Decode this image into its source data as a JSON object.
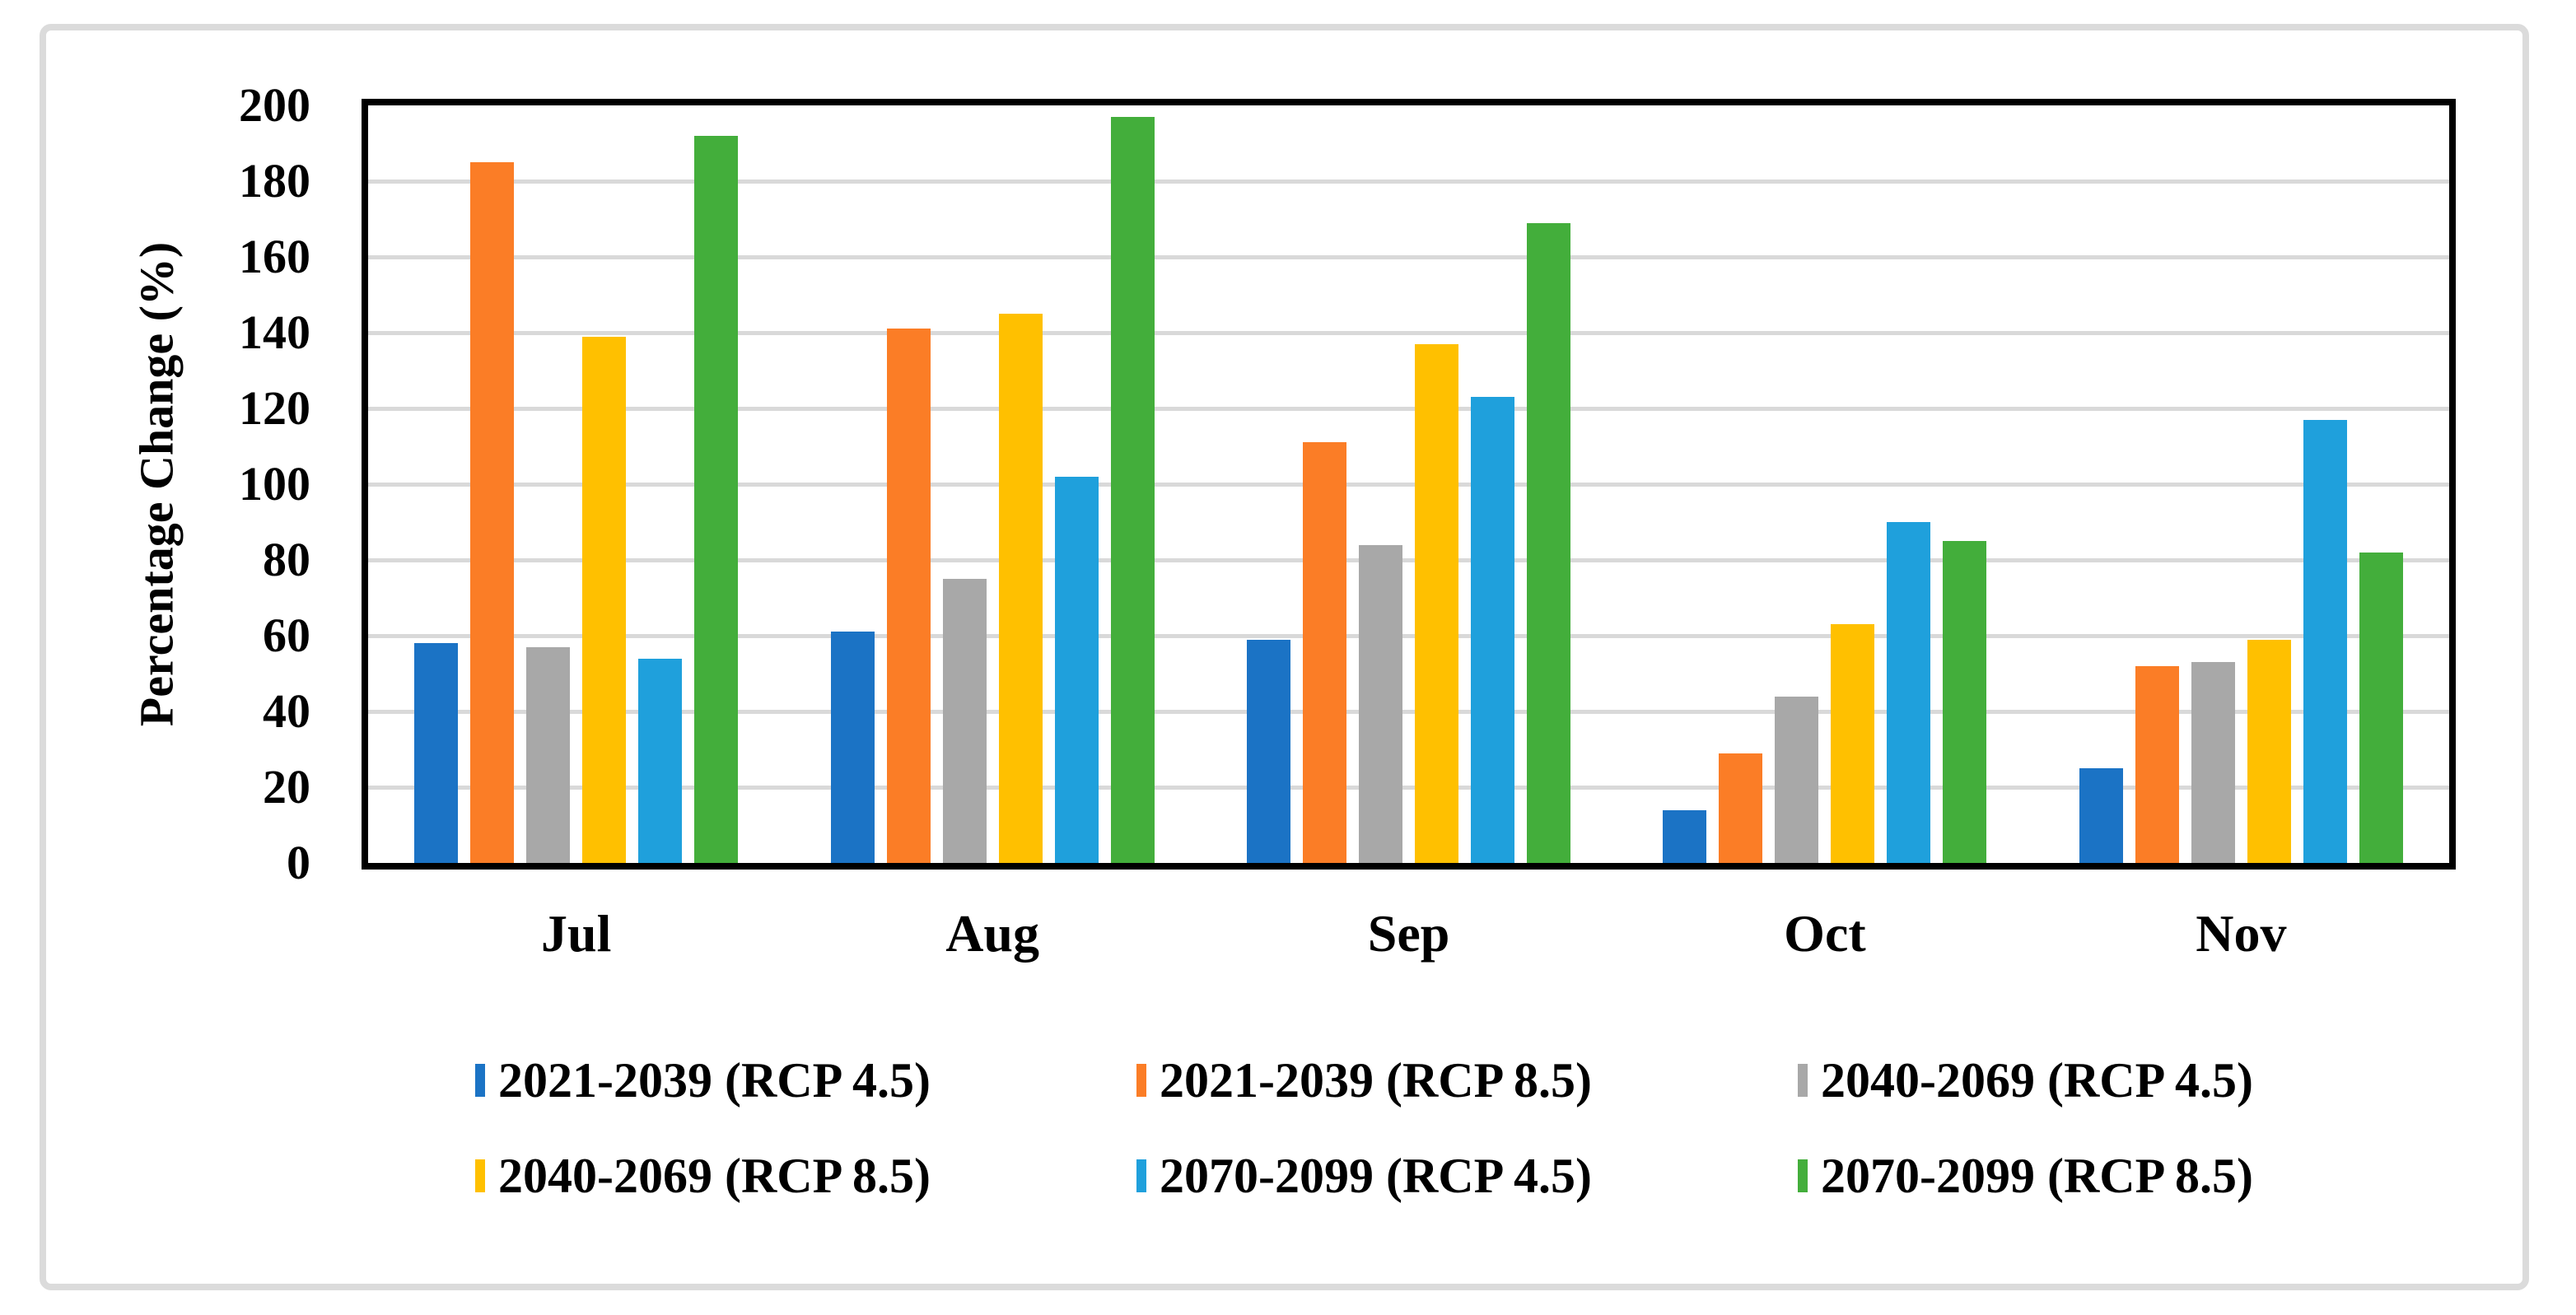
{
  "figure": {
    "background": "#FFFFFF",
    "frame_color": "#DBDBDB"
  },
  "chart_data": {
    "type": "bar",
    "title": "",
    "xlabel": "",
    "ylabel": "Percentage Change (%)",
    "categories": [
      "Jul",
      "Aug",
      "Sep",
      "Oct",
      "Nov"
    ],
    "series": [
      {
        "name": "2021-2039 (RCP 4.5)",
        "color": "#1B73C5",
        "values": [
          58,
          61,
          59,
          14,
          25
        ]
      },
      {
        "name": "2021-2039 (RCP 8.5)",
        "color": "#FB7D26",
        "values": [
          185,
          141,
          111,
          29,
          52
        ]
      },
      {
        "name": "2040-2069 (RCP 4.5)",
        "color": "#A8A8A8",
        "values": [
          57,
          75,
          84,
          44,
          53
        ]
      },
      {
        "name": "2040-2069 (RCP 8.5)",
        "color": "#FFC000",
        "values": [
          139,
          145,
          137,
          63,
          59
        ]
      },
      {
        "name": "2070-2099 (RCP 4.5)",
        "color": "#1FA0DC",
        "values": [
          54,
          102,
          123,
          90,
          117
        ]
      },
      {
        "name": "2070-2099 (RCP 8.5)",
        "color": "#43AE3B",
        "values": [
          192,
          197,
          169,
          85,
          82
        ]
      }
    ],
    "ylim": [
      0,
      200
    ],
    "yticks": [
      0,
      20,
      40,
      60,
      80,
      100,
      120,
      140,
      160,
      180,
      200
    ],
    "grid": true,
    "gridline_color": "#D9D9D9",
    "axis_color": "#000000",
    "legend_position": "bottom",
    "legend_rows": 2,
    "legend_columns": 3
  }
}
